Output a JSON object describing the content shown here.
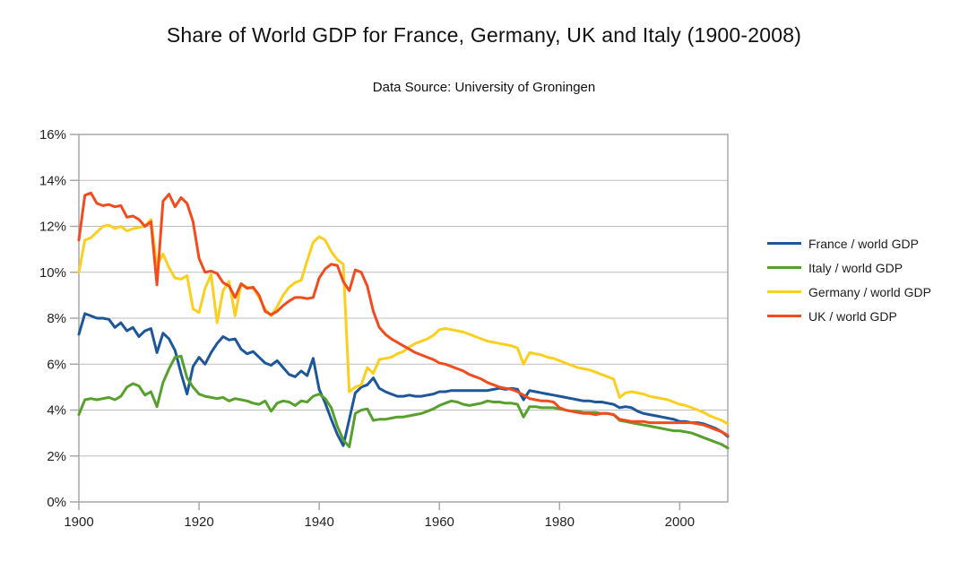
{
  "header": {
    "title": "Share of World GDP for France, Germany, UK and Italy (1900-2008)",
    "subtitle": "Data Source: University of Groningen"
  },
  "chart_data": {
    "type": "line",
    "title": "Share of World GDP for France, Germany, UK and Italy (1900-2008)",
    "subtitle": "Data Source: University of Groningen",
    "xlabel": "",
    "ylabel": "",
    "x_start": 1900,
    "x_end": 2008,
    "x_step": 1,
    "xlim": [
      1900,
      2008
    ],
    "ylim": [
      0,
      16
    ],
    "x_ticks": [
      1900,
      1920,
      1940,
      1960,
      1980,
      2000
    ],
    "y_ticks": [
      0,
      2,
      4,
      6,
      8,
      10,
      12,
      14,
      16
    ],
    "y_tick_labels": [
      "0%",
      "2%",
      "4%",
      "6%",
      "8%",
      "10%",
      "12%",
      "14%",
      "16%"
    ],
    "grid": "horizontal",
    "legend_position": "right",
    "series": [
      {
        "name": "France / world GDP",
        "color": "#1e5799",
        "values": [
          7.3,
          8.2,
          8.1,
          8.0,
          8.0,
          7.95,
          7.6,
          7.8,
          7.45,
          7.6,
          7.2,
          7.45,
          7.55,
          6.5,
          7.35,
          7.1,
          6.6,
          5.6,
          4.7,
          5.9,
          6.3,
          6.0,
          6.5,
          6.9,
          7.2,
          7.05,
          7.1,
          6.65,
          6.45,
          6.55,
          6.3,
          6.05,
          5.95,
          6.15,
          5.85,
          5.55,
          5.45,
          5.7,
          5.5,
          6.25,
          4.9,
          4.3,
          3.6,
          2.95,
          2.45,
          3.6,
          4.75,
          5.0,
          5.1,
          5.4,
          4.95,
          4.8,
          4.7,
          4.6,
          4.6,
          4.65,
          4.6,
          4.6,
          4.65,
          4.7,
          4.8,
          4.8,
          4.85,
          4.85,
          4.85,
          4.85,
          4.85,
          4.85,
          4.85,
          4.9,
          4.95,
          4.9,
          4.95,
          4.9,
          4.45,
          4.85,
          4.8,
          4.75,
          4.7,
          4.65,
          4.6,
          4.55,
          4.5,
          4.45,
          4.4,
          4.4,
          4.35,
          4.35,
          4.3,
          4.25,
          4.1,
          4.15,
          4.1,
          3.95,
          3.85,
          3.8,
          3.75,
          3.7,
          3.65,
          3.6,
          3.5,
          3.5,
          3.45,
          3.45,
          3.4,
          3.3,
          3.2,
          3.05,
          2.85
        ]
      },
      {
        "name": "Italy / world GDP",
        "color": "#58a02e",
        "values": [
          3.8,
          4.45,
          4.5,
          4.45,
          4.5,
          4.55,
          4.45,
          4.6,
          5.0,
          5.15,
          5.05,
          4.65,
          4.8,
          4.15,
          5.2,
          5.8,
          6.3,
          6.35,
          5.4,
          5.0,
          4.7,
          4.6,
          4.55,
          4.5,
          4.55,
          4.4,
          4.5,
          4.45,
          4.4,
          4.3,
          4.25,
          4.4,
          3.95,
          4.3,
          4.4,
          4.35,
          4.2,
          4.4,
          4.35,
          4.6,
          4.7,
          4.5,
          4.1,
          3.3,
          2.7,
          2.4,
          3.85,
          4.0,
          4.05,
          3.55,
          3.6,
          3.6,
          3.65,
          3.7,
          3.7,
          3.75,
          3.8,
          3.85,
          3.95,
          4.05,
          4.2,
          4.3,
          4.4,
          4.35,
          4.25,
          4.2,
          4.25,
          4.3,
          4.4,
          4.35,
          4.35,
          4.3,
          4.3,
          4.25,
          3.7,
          4.15,
          4.15,
          4.1,
          4.1,
          4.1,
          4.05,
          4.0,
          3.95,
          3.95,
          3.9,
          3.9,
          3.9,
          3.85,
          3.85,
          3.8,
          3.55,
          3.5,
          3.45,
          3.4,
          3.35,
          3.3,
          3.25,
          3.2,
          3.15,
          3.1,
          3.1,
          3.05,
          3.0,
          2.9,
          2.8,
          2.7,
          2.6,
          2.5,
          2.35
        ]
      },
      {
        "name": "Germany / world GDP",
        "color": "#fbcf1e",
        "values": [
          10.0,
          11.4,
          11.5,
          11.75,
          12.0,
          12.05,
          11.9,
          12.0,
          11.8,
          11.9,
          11.95,
          12.0,
          12.3,
          10.3,
          10.8,
          10.2,
          9.75,
          9.7,
          9.85,
          8.4,
          8.25,
          9.3,
          9.9,
          7.8,
          9.2,
          9.6,
          8.1,
          9.5,
          9.35,
          9.3,
          8.9,
          8.4,
          8.1,
          8.5,
          9.0,
          9.35,
          9.55,
          9.65,
          10.5,
          11.3,
          11.55,
          11.4,
          10.9,
          10.55,
          10.35,
          4.8,
          5.0,
          5.1,
          5.85,
          5.6,
          6.2,
          6.25,
          6.3,
          6.45,
          6.55,
          6.75,
          6.9,
          7.0,
          7.1,
          7.25,
          7.5,
          7.55,
          7.5,
          7.45,
          7.4,
          7.3,
          7.2,
          7.1,
          7.0,
          6.95,
          6.9,
          6.85,
          6.8,
          6.7,
          6.0,
          6.5,
          6.45,
          6.4,
          6.3,
          6.25,
          6.15,
          6.05,
          5.95,
          5.85,
          5.8,
          5.75,
          5.65,
          5.55,
          5.45,
          5.35,
          4.55,
          4.75,
          4.8,
          4.75,
          4.7,
          4.6,
          4.55,
          4.5,
          4.45,
          4.35,
          4.25,
          4.2,
          4.1,
          4.0,
          3.9,
          3.75,
          3.65,
          3.55,
          3.4
        ]
      },
      {
        "name": "UK / world GDP",
        "color": "#f24c1e",
        "values": [
          11.4,
          13.35,
          13.45,
          13.0,
          12.9,
          12.95,
          12.85,
          12.9,
          12.4,
          12.45,
          12.3,
          12.0,
          12.2,
          9.45,
          13.1,
          13.4,
          12.85,
          13.25,
          13.0,
          12.2,
          10.6,
          10.0,
          10.05,
          9.95,
          9.55,
          9.4,
          8.9,
          9.5,
          9.3,
          9.35,
          9.0,
          8.3,
          8.15,
          8.3,
          8.55,
          8.75,
          8.9,
          8.9,
          8.85,
          8.9,
          9.75,
          10.15,
          10.35,
          10.3,
          9.6,
          9.2,
          10.1,
          10.0,
          9.4,
          8.3,
          7.6,
          7.3,
          7.1,
          6.95,
          6.8,
          6.65,
          6.5,
          6.4,
          6.3,
          6.2,
          6.05,
          6.0,
          5.9,
          5.8,
          5.7,
          5.55,
          5.45,
          5.35,
          5.2,
          5.1,
          5.0,
          4.95,
          4.9,
          4.8,
          4.65,
          4.5,
          4.45,
          4.4,
          4.4,
          4.35,
          4.1,
          4.0,
          3.95,
          3.9,
          3.85,
          3.85,
          3.8,
          3.85,
          3.85,
          3.8,
          3.6,
          3.55,
          3.5,
          3.5,
          3.5,
          3.45,
          3.45,
          3.45,
          3.45,
          3.45,
          3.45,
          3.45,
          3.45,
          3.4,
          3.35,
          3.25,
          3.15,
          3.05,
          2.9
        ]
      }
    ]
  },
  "colors": {
    "grid": "#bdbdbd",
    "frame": "#a8a8a8",
    "tick": "#a8a8a8",
    "label_text": "#222222",
    "background": "#ffffff"
  }
}
